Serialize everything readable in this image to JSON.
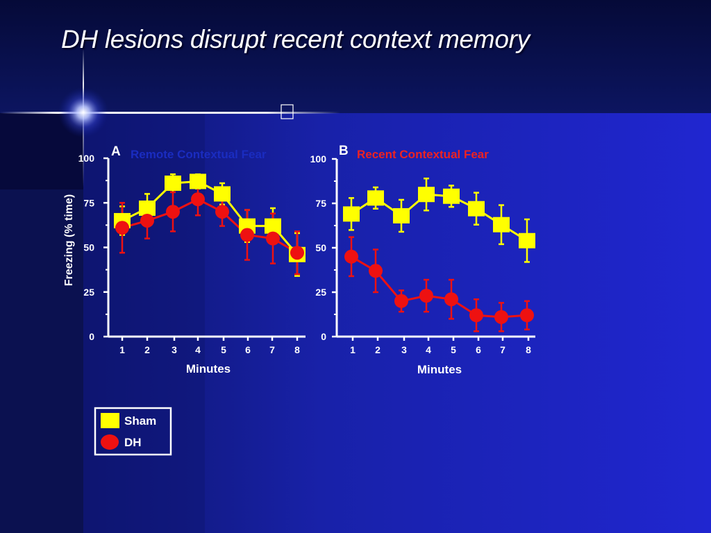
{
  "slide": {
    "title": "DH lesions disrupt recent context memory",
    "colors": {
      "background_dark": "#0a1147",
      "background_blue": "#1f24c8",
      "accent_line": "#ffffff"
    },
    "icons": [
      "lens-flare-icon",
      "missing-glyph-icon"
    ]
  },
  "chart_data": [
    {
      "type": "line",
      "panel_label": "A",
      "title": "Remote Contextual Fear",
      "title_color": "#1a2cc0",
      "xlabel": "Minutes",
      "ylabel": "Freezing (% time)",
      "x": [
        1,
        2,
        3,
        4,
        5,
        6,
        7,
        8
      ],
      "ylim": [
        0,
        100
      ],
      "yticks": [
        0,
        25,
        50,
        75,
        100
      ],
      "grid": false,
      "series": [
        {
          "name": "Sham",
          "color": "#ffff00",
          "marker": "square",
          "values": [
            65,
            72,
            86,
            87,
            80,
            62,
            62,
            46
          ],
          "error": [
            8,
            8,
            5,
            4,
            6,
            9,
            10,
            12
          ]
        },
        {
          "name": "DH",
          "color": "#ee1111",
          "marker": "circle",
          "values": [
            61,
            65,
            70,
            77,
            70,
            57,
            55,
            47
          ],
          "error": [
            14,
            10,
            11,
            9,
            8,
            14,
            14,
            12
          ]
        }
      ]
    },
    {
      "type": "line",
      "panel_label": "B",
      "title": "Recent Contextual Fear",
      "title_color": "#ee2222",
      "xlabel": "Minutes",
      "ylabel": "",
      "x": [
        1,
        2,
        3,
        4,
        5,
        6,
        7,
        8
      ],
      "ylim": [
        0,
        100
      ],
      "yticks": [
        0,
        25,
        50,
        75,
        100
      ],
      "grid": false,
      "series": [
        {
          "name": "Sham",
          "color": "#ffff00",
          "marker": "square",
          "values": [
            69,
            78,
            68,
            80,
            79,
            72,
            63,
            54
          ],
          "error": [
            9,
            6,
            9,
            9,
            6,
            9,
            11,
            12
          ]
        },
        {
          "name": "DH",
          "color": "#ee1111",
          "marker": "circle",
          "values": [
            45,
            37,
            20,
            23,
            21,
            12,
            11,
            12
          ],
          "error": [
            11,
            12,
            6,
            9,
            11,
            9,
            8,
            8
          ]
        }
      ]
    }
  ],
  "legend": {
    "position": "bottom-left",
    "items": [
      {
        "label": "Sham",
        "color": "#ffff00",
        "marker": "square"
      },
      {
        "label": "DH",
        "color": "#ee1111",
        "marker": "circle"
      }
    ]
  }
}
